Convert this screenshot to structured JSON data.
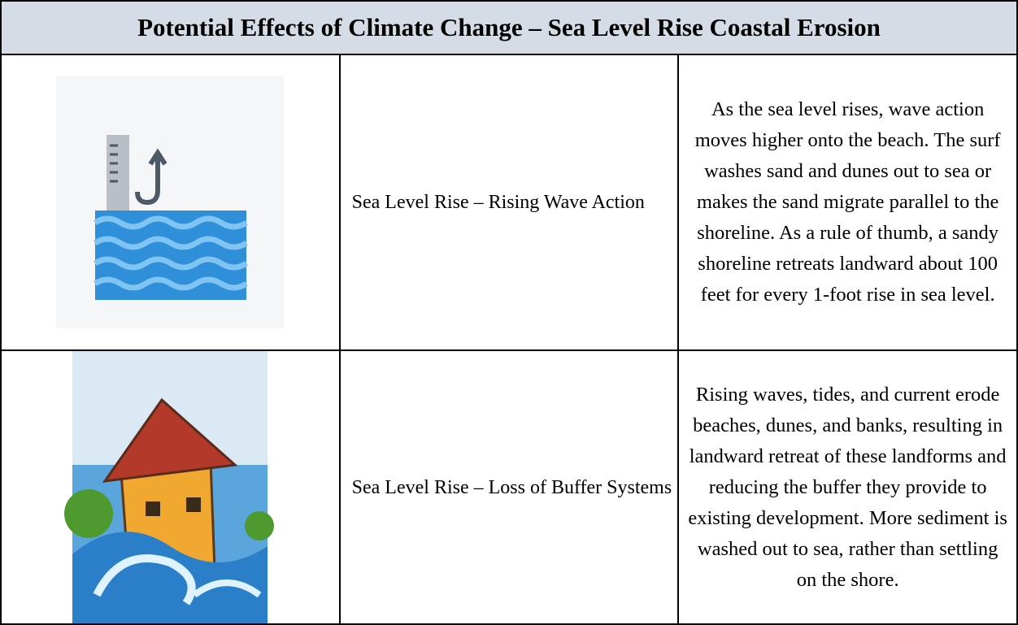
{
  "table": {
    "title": "Potential Effects of Climate Change – Sea Level Rise Coastal Erosion",
    "rows": [
      {
        "effect": "Sea Level Rise – Rising Wave Action",
        "description": "As the sea level rises, wave action moves higher onto the beach. The surf washes sand and dunes out to sea or makes the sand migrate parallel to the shoreline. As a rule of thumb, a sandy shoreline retreats landward about 100 feet for every 1-foot rise in sea level."
      },
      {
        "effect": "Sea Level Rise – Loss of Buffer Systems",
        "description": "Rising waves, tides, and current erode beaches, dunes, and banks, resulting in landward retreat of these landforms and reducing the buffer they provide to existing development. More sediment is washed out to sea, rather than settling on the shore."
      }
    ]
  }
}
